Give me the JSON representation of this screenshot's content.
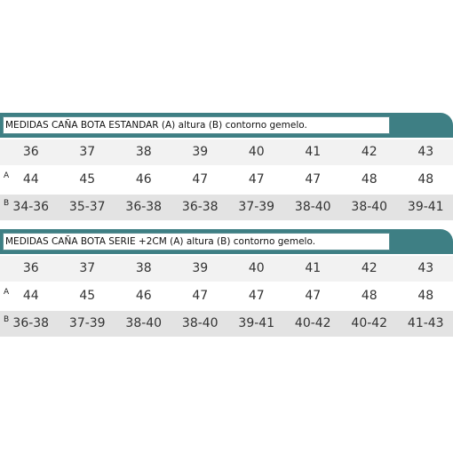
{
  "tables": [
    {
      "title": "MEDIDAS CAÑA BOTA ESTANDAR (A) altura (B) contorno gemelo.",
      "sizes": [
        36,
        37,
        38,
        39,
        40,
        41,
        42,
        43
      ],
      "rows": [
        {
          "label": "A",
          "values": [
            44,
            45,
            46,
            47,
            47,
            47,
            48,
            48
          ]
        },
        {
          "label": "B",
          "values": [
            "34-36",
            "35-37",
            "36-38",
            "36-38",
            "37-39",
            "38-40",
            "38-40",
            "39-41"
          ]
        }
      ]
    },
    {
      "title": "MEDIDAS CAÑA BOTA SERIE +2CM (A) altura (B) contorno gemelo.",
      "sizes": [
        36,
        37,
        38,
        39,
        40,
        41,
        42,
        43
      ],
      "rows": [
        {
          "label": "A",
          "values": [
            44,
            45,
            46,
            47,
            47,
            47,
            48,
            48
          ]
        },
        {
          "label": "B",
          "values": [
            "36-38",
            "37-39",
            "38-40",
            "38-40",
            "39-41",
            "40-42",
            "40-42",
            "41-43"
          ]
        }
      ]
    }
  ]
}
